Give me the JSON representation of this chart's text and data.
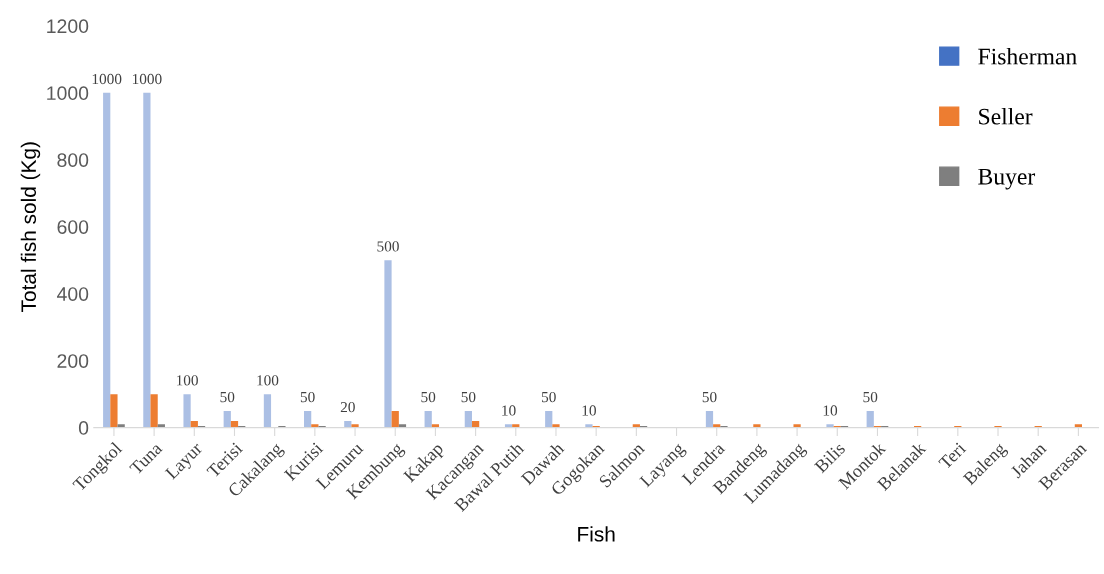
{
  "chart_data": {
    "type": "bar",
    "xlabel": "Fish",
    "ylabel": "Total fish sold (Kg)",
    "categories": [
      "Tongkol",
      "Tuna",
      "Layur",
      "Terisi",
      "Cakalang",
      "Kurisi",
      "Lemuru",
      "Kembung",
      "Kakap",
      "Kacangan",
      "Bawal Putih",
      "Dawah",
      "Gogokan",
      "Salmon",
      "Layang",
      "Lendra",
      "Bandeng",
      "Lumadang",
      "Bilis",
      "Montok",
      "Belanak",
      "Teri",
      "Baleng",
      "Jahan",
      "Berasan"
    ],
    "series": [
      {
        "name": "Fisherman",
        "color": "#4472c4",
        "values": [
          1000,
          1000,
          100,
          50,
          100,
          50,
          20,
          500,
          50,
          50,
          10,
          50,
          10,
          0,
          0,
          50,
          0,
          0,
          10,
          50,
          0,
          0,
          0,
          0,
          0
        ],
        "value_labels": [
          "1000",
          "1000",
          "100",
          "50",
          "100",
          "50",
          "20",
          "500",
          "50",
          "50",
          "10",
          "50",
          "10",
          null,
          null,
          "50",
          null,
          null,
          "10",
          "50",
          null,
          null,
          null,
          null,
          null
        ]
      },
      {
        "name": "Seller",
        "color": "#ed7d31",
        "values": [
          100,
          100,
          20,
          20,
          0,
          10,
          10,
          50,
          10,
          20,
          10,
          10,
          5,
          10,
          0,
          10,
          10,
          10,
          5,
          5,
          5,
          5,
          5,
          5,
          10
        ]
      },
      {
        "name": "Buyer",
        "color": "#7f7f7f",
        "values": [
          10,
          10,
          5,
          5,
          5,
          5,
          0,
          10,
          0,
          null,
          0,
          0,
          0,
          5,
          0,
          5,
          null,
          0,
          5,
          5,
          0,
          0,
          0,
          0,
          null
        ]
      }
    ],
    "ylim": [
      0,
      1200
    ],
    "yticks": [
      0,
      200,
      400,
      600,
      800,
      1000,
      1200
    ],
    "grid": false,
    "legend": "top right"
  }
}
